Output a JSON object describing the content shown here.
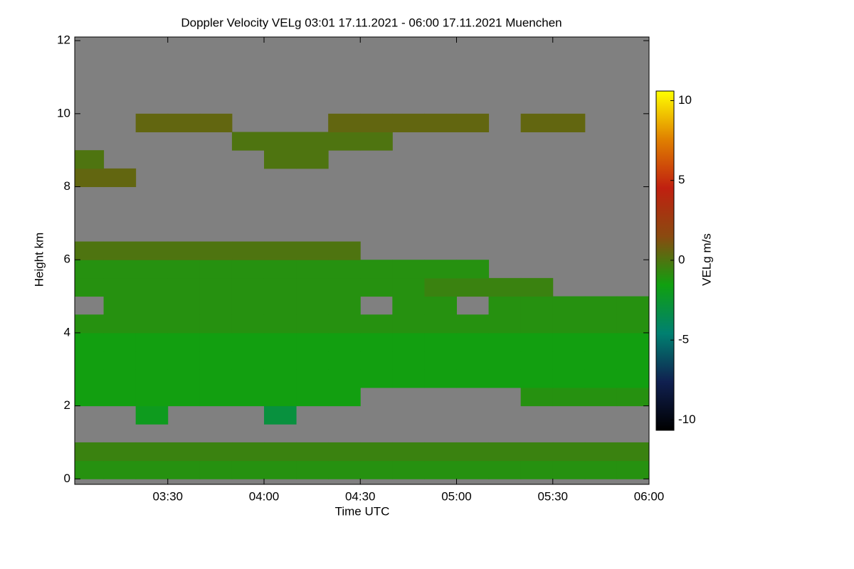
{
  "chart_data": {
    "type": "heatmap",
    "title": "Doppler Velocity VELg   03:01 17.11.2021 - 06:00 17.11.2021 Muenchen",
    "x_label": "Time UTC",
    "y_label": "Height km",
    "colorbar_label": "VELg m/s",
    "xlim": [
      "03:01",
      "06:00"
    ],
    "xticks": [
      "03:30",
      "04:00",
      "04:30",
      "05:00",
      "05:30",
      "06:00"
    ],
    "ylim": [
      -0.15,
      12.1
    ],
    "yticks": [
      0,
      2,
      4,
      6,
      8,
      10,
      12
    ],
    "vlim": [
      -10.65,
      10.6
    ],
    "vticks": [
      -10,
      -5,
      0,
      5,
      10
    ],
    "nan_color": "#808080",
    "colormap": [
      "#000000",
      "#102050",
      "#008070",
      "#10a010",
      "#8a4a10",
      "#c02010",
      "#e08000",
      "#ffff00"
    ],
    "x": [
      "03:05",
      "03:15",
      "03:25",
      "03:35",
      "03:45",
      "03:55",
      "04:05",
      "04:15",
      "04:25",
      "04:35",
      "04:45",
      "04:55",
      "05:05",
      "05:15",
      "05:25",
      "05:35",
      "05:45",
      "05:55"
    ],
    "y": [
      0.25,
      0.75,
      1.25,
      1.75,
      2.25,
      2.75,
      3.25,
      3.75,
      4.25,
      4.75,
      5.25,
      5.75,
      6.25,
      6.75,
      7.25,
      7.75,
      8.25,
      8.75,
      9.25,
      9.75
    ],
    "z": [
      [
        -1,
        -1,
        -1,
        -1,
        -1,
        -1,
        -1,
        -1,
        -1,
        -1,
        -1,
        -1,
        -1,
        -1,
        -1,
        -1,
        -1,
        -1
      ],
      [
        -0.5,
        -0.5,
        -0.5,
        -0.5,
        -0.5,
        -0.5,
        -0.5,
        -0.5,
        -0.5,
        -0.5,
        -0.5,
        -0.5,
        -0.5,
        -0.5,
        -0.5,
        -0.5,
        -0.5,
        -0.5
      ],
      [
        null,
        null,
        null,
        null,
        null,
        null,
        null,
        null,
        null,
        null,
        null,
        null,
        null,
        null,
        null,
        null,
        null,
        null
      ],
      [
        null,
        null,
        -2,
        null,
        null,
        null,
        -3,
        null,
        null,
        null,
        null,
        null,
        null,
        null,
        null,
        null,
        null,
        null
      ],
      [
        -1.5,
        -1.5,
        -1.5,
        -1.5,
        -1.5,
        -1.5,
        -1.5,
        -1.5,
        -1.5,
        null,
        null,
        null,
        null,
        null,
        -1,
        -1,
        -1,
        -1
      ],
      [
        -1.5,
        -1.5,
        -1.5,
        -1.5,
        -1.5,
        -1.5,
        -1.5,
        -1.5,
        -1.5,
        -1.5,
        -1.5,
        -1.5,
        -1.5,
        -1.5,
        -1.5,
        -1.5,
        -1.5,
        -1.5
      ],
      [
        -1.5,
        -1.5,
        -1.5,
        -1.5,
        -1.5,
        -1.5,
        -1.5,
        -1.5,
        -1.5,
        -1.5,
        -1.5,
        -1.5,
        -1.5,
        -1.5,
        -1.5,
        -1.5,
        -1.5,
        -1.5
      ],
      [
        -1.5,
        -1.5,
        -1.5,
        -1.5,
        -1.5,
        -1.5,
        -1.5,
        -1.5,
        -1.5,
        -1.5,
        -1.5,
        -1.5,
        -1.5,
        -1.5,
        -1.5,
        -1.5,
        -1.5,
        -1.5
      ],
      [
        -1,
        -1,
        -1,
        -1,
        -1,
        -1,
        -1,
        -1,
        -1,
        -1,
        -1,
        -1,
        -1,
        -1,
        -1,
        -1,
        -1,
        -1
      ],
      [
        null,
        -1,
        -1,
        -1,
        -1,
        -1,
        -1,
        -1,
        -1,
        null,
        -1,
        -1,
        null,
        -1,
        -1,
        -1,
        -1,
        -1
      ],
      [
        -1,
        -1,
        -1,
        -1,
        -1,
        -1,
        -1,
        -1,
        -1,
        -1,
        -1,
        -0.5,
        -0.5,
        -0.5,
        -0.5,
        null,
        null,
        null
      ],
      [
        -1,
        -1,
        -1,
        -1,
        -1,
        -1,
        -1,
        -1,
        -1,
        -1,
        -1,
        -1,
        -1,
        null,
        null,
        null,
        null,
        null
      ],
      [
        0,
        0,
        0,
        0,
        0,
        0,
        0,
        0,
        0,
        null,
        null,
        null,
        null,
        null,
        null,
        null,
        null,
        null
      ],
      [
        null,
        null,
        null,
        null,
        null,
        null,
        null,
        null,
        null,
        null,
        null,
        null,
        null,
        null,
        null,
        null,
        null,
        null
      ],
      [
        null,
        null,
        null,
        null,
        null,
        null,
        null,
        null,
        null,
        null,
        null,
        null,
        null,
        null,
        null,
        null,
        null,
        null
      ],
      [
        null,
        null,
        null,
        null,
        null,
        null,
        null,
        null,
        null,
        null,
        null,
        null,
        null,
        null,
        null,
        null,
        null,
        null
      ],
      [
        0.5,
        0.5,
        null,
        null,
        null,
        null,
        null,
        null,
        null,
        null,
        null,
        null,
        null,
        null,
        null,
        null,
        null,
        null
      ],
      [
        0,
        null,
        null,
        null,
        null,
        null,
        0,
        0,
        null,
        null,
        null,
        null,
        null,
        null,
        null,
        null,
        null,
        null
      ],
      [
        null,
        null,
        null,
        null,
        null,
        0,
        0,
        0,
        0,
        0,
        null,
        null,
        null,
        null,
        null,
        null,
        null,
        null
      ],
      [
        null,
        null,
        0.5,
        0.5,
        0.5,
        null,
        null,
        null,
        0.5,
        0.5,
        0.5,
        0.5,
        0.5,
        null,
        0.5,
        0.5,
        null,
        null
      ]
    ]
  }
}
